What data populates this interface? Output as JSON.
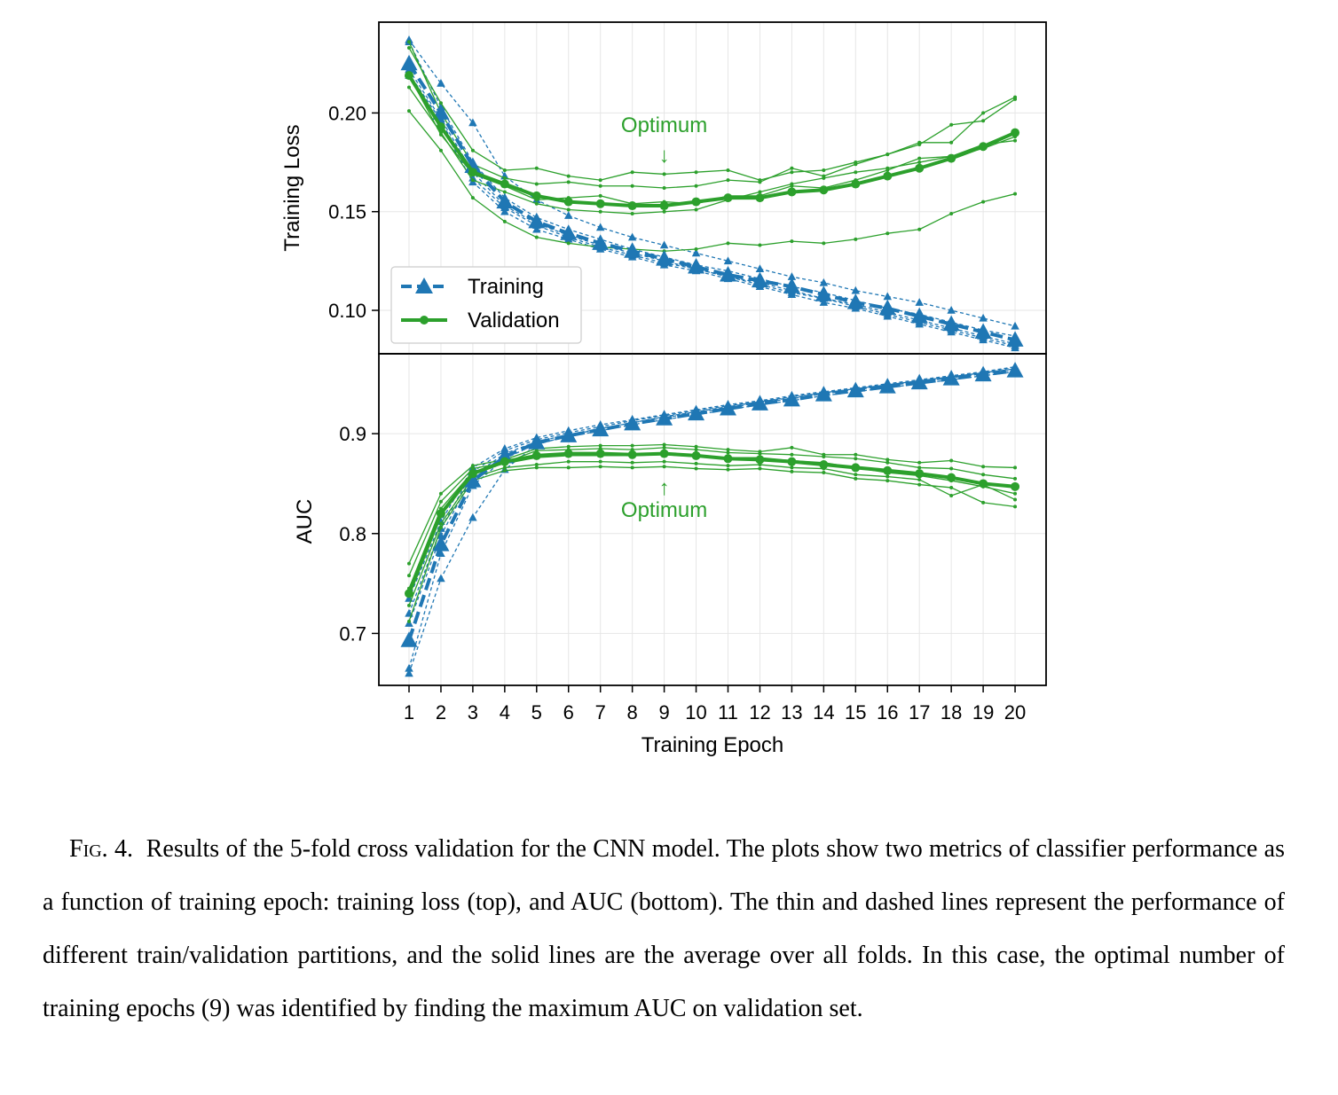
{
  "chart_data": [
    {
      "type": "line",
      "panel": "top",
      "ylabel": "Training Loss",
      "ylim": [
        0.078,
        0.246
      ],
      "yticks": [
        "0.10",
        "0.15",
        "0.20"
      ],
      "ytick_values": [
        0.1,
        0.15,
        0.2
      ],
      "x": [
        1,
        2,
        3,
        4,
        5,
        6,
        7,
        8,
        9,
        10,
        11,
        12,
        13,
        14,
        15,
        16,
        17,
        18,
        19,
        20
      ],
      "grid": true,
      "legend_position": "lower-left",
      "annotation": {
        "text": "Optimum",
        "arrow": "↓",
        "x": 9
      },
      "series": [
        {
          "name": "Training",
          "role": "mean",
          "color": "#1f77b4",
          "style": "dashed",
          "marker": "triangle",
          "values": [
            0.225,
            0.2,
            0.173,
            0.155,
            0.145,
            0.139,
            0.134,
            0.13,
            0.126,
            0.122,
            0.118,
            0.115,
            0.112,
            0.108,
            0.104,
            0.101,
            0.097,
            0.093,
            0.089,
            0.085
          ]
        },
        {
          "name": "Validation",
          "role": "mean",
          "color": "#2ca02c",
          "style": "solid",
          "marker": "circle",
          "values": [
            0.219,
            0.193,
            0.17,
            0.164,
            0.158,
            0.155,
            0.154,
            0.153,
            0.153,
            0.155,
            0.157,
            0.157,
            0.16,
            0.161,
            0.164,
            0.168,
            0.172,
            0.177,
            0.183,
            0.19
          ]
        },
        {
          "role": "fold",
          "color": "#1f77b4",
          "style": "dashed",
          "values": [
            0.237,
            0.215,
            0.195,
            0.168,
            0.156,
            0.148,
            0.142,
            0.137,
            0.133,
            0.129,
            0.125,
            0.121,
            0.117,
            0.114,
            0.11,
            0.107,
            0.104,
            0.1,
            0.096,
            0.092
          ]
        },
        {
          "role": "fold",
          "color": "#1f77b4",
          "style": "dashed",
          "values": [
            0.236,
            0.203,
            0.175,
            0.157,
            0.147,
            0.141,
            0.136,
            0.131,
            0.127,
            0.123,
            0.12,
            0.116,
            0.112,
            0.109,
            0.105,
            0.101,
            0.098,
            0.094,
            0.09,
            0.087
          ]
        },
        {
          "role": "fold",
          "color": "#1f77b4",
          "style": "dashed",
          "values": [
            0.222,
            0.197,
            0.17,
            0.153,
            0.144,
            0.138,
            0.133,
            0.129,
            0.125,
            0.121,
            0.117,
            0.114,
            0.11,
            0.106,
            0.103,
            0.099,
            0.095,
            0.091,
            0.087,
            0.083
          ]
        },
        {
          "role": "fold",
          "color": "#1f77b4",
          "style": "dashed",
          "values": [
            0.22,
            0.196,
            0.167,
            0.152,
            0.143,
            0.137,
            0.132,
            0.128,
            0.124,
            0.121,
            0.117,
            0.113,
            0.109,
            0.106,
            0.102,
            0.098,
            0.094,
            0.09,
            0.086,
            0.082
          ]
        },
        {
          "role": "fold",
          "color": "#1f77b4",
          "style": "dashed",
          "values": [
            0.219,
            0.194,
            0.165,
            0.15,
            0.141,
            0.136,
            0.131,
            0.127,
            0.123,
            0.12,
            0.116,
            0.112,
            0.108,
            0.104,
            0.101,
            0.097,
            0.093,
            0.089,
            0.085,
            0.081
          ]
        },
        {
          "role": "fold",
          "color": "#2ca02c",
          "style": "solid",
          "values": [
            0.201,
            0.181,
            0.157,
            0.145,
            0.137,
            0.134,
            0.132,
            0.131,
            0.13,
            0.131,
            0.134,
            0.133,
            0.135,
            0.134,
            0.136,
            0.139,
            0.141,
            0.149,
            0.155,
            0.159
          ]
        },
        {
          "role": "fold",
          "color": "#2ca02c",
          "style": "solid",
          "values": [
            0.233,
            0.205,
            0.181,
            0.171,
            0.172,
            0.168,
            0.166,
            0.17,
            0.169,
            0.17,
            0.171,
            0.166,
            0.17,
            0.171,
            0.175,
            0.179,
            0.185,
            0.185,
            0.2,
            0.208
          ]
        },
        {
          "role": "fold",
          "color": "#2ca02c",
          "style": "solid",
          "values": [
            0.236,
            0.2,
            0.174,
            0.167,
            0.164,
            0.165,
            0.163,
            0.163,
            0.162,
            0.163,
            0.166,
            0.165,
            0.172,
            0.168,
            0.174,
            0.179,
            0.184,
            0.194,
            0.196,
            0.207
          ]
        },
        {
          "role": "fold",
          "color": "#2ca02c",
          "style": "solid",
          "values": [
            0.219,
            0.189,
            0.169,
            0.163,
            0.156,
            0.157,
            0.158,
            0.154,
            0.155,
            0.154,
            0.158,
            0.158,
            0.163,
            0.162,
            0.166,
            0.171,
            0.177,
            0.178,
            0.182,
            0.188
          ]
        },
        {
          "role": "fold",
          "color": "#2ca02c",
          "style": "solid",
          "values": [
            0.213,
            0.19,
            0.166,
            0.16,
            0.154,
            0.151,
            0.15,
            0.149,
            0.15,
            0.151,
            0.156,
            0.16,
            0.164,
            0.167,
            0.17,
            0.172,
            0.175,
            0.178,
            0.184,
            0.186
          ]
        }
      ]
    },
    {
      "type": "line",
      "panel": "bottom",
      "xlabel": "Training Epoch",
      "ylabel": "AUC",
      "ylim": [
        0.648,
        0.98
      ],
      "yticks": [
        "0.7",
        "0.8",
        "0.9"
      ],
      "ytick_values": [
        0.7,
        0.8,
        0.9
      ],
      "x": [
        1,
        2,
        3,
        4,
        5,
        6,
        7,
        8,
        9,
        10,
        11,
        12,
        13,
        14,
        15,
        16,
        17,
        18,
        19,
        20
      ],
      "xticks": [
        "1",
        "2",
        "3",
        "4",
        "5",
        "6",
        "7",
        "8",
        "9",
        "10",
        "11",
        "12",
        "13",
        "14",
        "15",
        "16",
        "17",
        "18",
        "19",
        "20"
      ],
      "grid": true,
      "annotation": {
        "text": "Optimum",
        "arrow": "↑",
        "x": 9
      },
      "series": [
        {
          "name": "Training",
          "role": "mean",
          "color": "#1f77b4",
          "style": "dashed",
          "marker": "triangle",
          "values": [
            0.693,
            0.789,
            0.853,
            0.877,
            0.891,
            0.898,
            0.904,
            0.91,
            0.915,
            0.92,
            0.925,
            0.93,
            0.934,
            0.939,
            0.943,
            0.947,
            0.951,
            0.955,
            0.959,
            0.963
          ]
        },
        {
          "name": "Validation",
          "role": "mean",
          "color": "#2ca02c",
          "style": "solid",
          "marker": "circle",
          "values": [
            0.74,
            0.82,
            0.86,
            0.872,
            0.878,
            0.88,
            0.88,
            0.879,
            0.88,
            0.878,
            0.875,
            0.874,
            0.872,
            0.869,
            0.866,
            0.863,
            0.86,
            0.856,
            0.85,
            0.847
          ]
        },
        {
          "role": "fold",
          "color": "#1f77b4",
          "style": "dashed",
          "values": [
            0.66,
            0.755,
            0.816,
            0.864,
            0.889,
            0.898,
            0.905,
            0.911,
            0.917,
            0.922,
            0.927,
            0.932,
            0.936,
            0.941,
            0.945,
            0.949,
            0.953,
            0.957,
            0.961,
            0.965
          ]
        },
        {
          "role": "fold",
          "color": "#1f77b4",
          "style": "dashed",
          "values": [
            0.665,
            0.78,
            0.848,
            0.875,
            0.89,
            0.897,
            0.903,
            0.909,
            0.914,
            0.919,
            0.924,
            0.929,
            0.933,
            0.938,
            0.942,
            0.946,
            0.95,
            0.954,
            0.958,
            0.962
          ]
        },
        {
          "role": "fold",
          "color": "#1f77b4",
          "style": "dashed",
          "values": [
            0.71,
            0.798,
            0.858,
            0.88,
            0.892,
            0.899,
            0.905,
            0.911,
            0.916,
            0.921,
            0.926,
            0.931,
            0.935,
            0.94,
            0.944,
            0.948,
            0.952,
            0.956,
            0.96,
            0.964
          ]
        },
        {
          "role": "fold",
          "color": "#1f77b4",
          "style": "dashed",
          "values": [
            0.72,
            0.805,
            0.862,
            0.883,
            0.894,
            0.901,
            0.907,
            0.913,
            0.918,
            0.923,
            0.928,
            0.932,
            0.937,
            0.941,
            0.945,
            0.949,
            0.953,
            0.957,
            0.961,
            0.966
          ]
        },
        {
          "role": "fold",
          "color": "#1f77b4",
          "style": "dashed",
          "values": [
            0.735,
            0.812,
            0.866,
            0.885,
            0.896,
            0.903,
            0.909,
            0.914,
            0.919,
            0.924,
            0.929,
            0.933,
            0.938,
            0.942,
            0.946,
            0.95,
            0.954,
            0.958,
            0.962,
            0.967
          ]
        },
        {
          "role": "fold",
          "color": "#2ca02c",
          "style": "solid",
          "values": [
            0.77,
            0.84,
            0.868,
            0.874,
            0.885,
            0.887,
            0.888,
            0.888,
            0.889,
            0.887,
            0.884,
            0.882,
            0.886,
            0.879,
            0.879,
            0.874,
            0.871,
            0.873,
            0.867,
            0.866
          ]
        },
        {
          "role": "fold",
          "color": "#2ca02c",
          "style": "solid",
          "values": [
            0.758,
            0.832,
            0.865,
            0.871,
            0.883,
            0.884,
            0.885,
            0.884,
            0.886,
            0.884,
            0.881,
            0.88,
            0.879,
            0.877,
            0.875,
            0.871,
            0.866,
            0.865,
            0.859,
            0.855
          ]
        },
        {
          "role": "fold",
          "color": "#2ca02c",
          "style": "solid",
          "values": [
            0.745,
            0.825,
            0.862,
            0.87,
            0.876,
            0.878,
            0.878,
            0.878,
            0.879,
            0.877,
            0.876,
            0.876,
            0.873,
            0.871,
            0.866,
            0.861,
            0.858,
            0.853,
            0.847,
            0.84
          ]
        },
        {
          "role": "fold",
          "color": "#2ca02c",
          "style": "solid",
          "values": [
            0.728,
            0.81,
            0.856,
            0.866,
            0.869,
            0.872,
            0.872,
            0.871,
            0.872,
            0.87,
            0.868,
            0.869,
            0.866,
            0.865,
            0.859,
            0.857,
            0.854,
            0.838,
            0.849,
            0.834
          ]
        },
        {
          "role": "fold",
          "color": "#2ca02c",
          "style": "solid",
          "values": [
            0.712,
            0.806,
            0.853,
            0.863,
            0.866,
            0.866,
            0.867,
            0.866,
            0.867,
            0.865,
            0.864,
            0.865,
            0.862,
            0.861,
            0.855,
            0.853,
            0.849,
            0.846,
            0.831,
            0.827
          ]
        }
      ]
    }
  ],
  "legend": {
    "items": [
      {
        "label": "Training",
        "color": "#1f77b4"
      },
      {
        "label": "Validation",
        "color": "#2ca02c"
      }
    ]
  },
  "caption": {
    "label": "Fig. 4.",
    "text": "Results of the 5-fold cross validation for the CNN model.  The plots show two metrics of classifier performance as a function of training epoch: training loss (top), and AUC (bottom).  The thin and dashed lines represent the performance of different train/validation partitions, and the solid lines are the average over all folds. In this case, the optimal number of training epochs (9) was identified by finding the maximum AUC on validation set."
  },
  "colors": {
    "training": "#1f77b4",
    "validation": "#2ca02c",
    "grid": "#e6e6e6"
  }
}
